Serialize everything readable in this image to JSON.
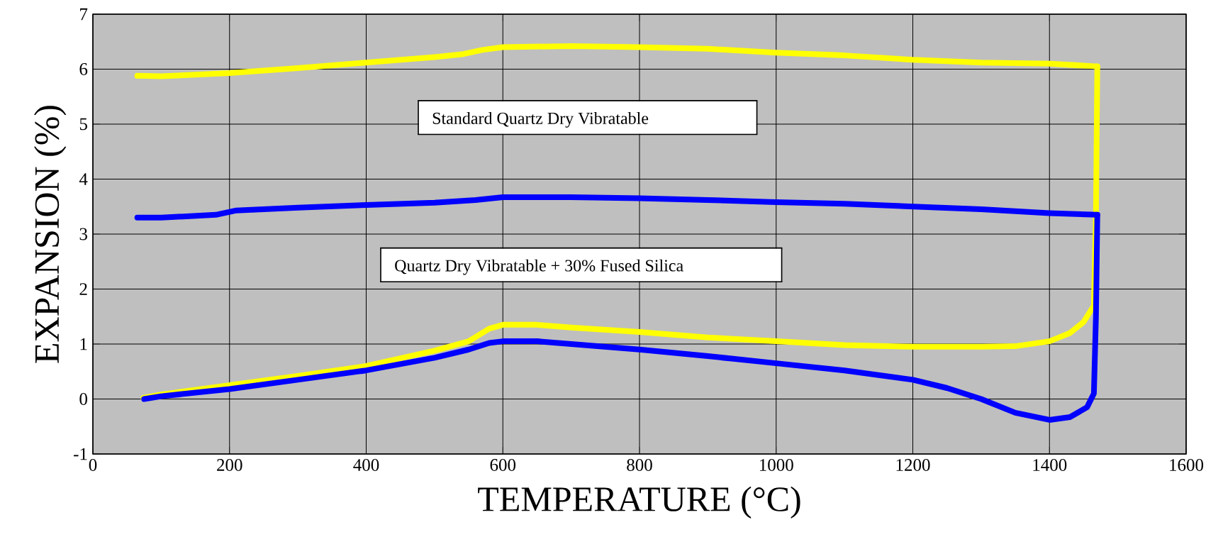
{
  "chart_data": {
    "type": "line",
    "xlabel": "TEMPERATURE (°C)",
    "ylabel": "EXPANSION (%)",
    "xlim": [
      0,
      1600
    ],
    "ylim": [
      -1,
      7
    ],
    "xticks": [
      0,
      200,
      400,
      600,
      800,
      1000,
      1200,
      1400,
      1600
    ],
    "yticks": [
      -1,
      0,
      1,
      2,
      3,
      4,
      5,
      6,
      7
    ],
    "grid": true,
    "marker": "none",
    "line_style": "solid",
    "annotations": [
      "Standard Quartz Dry Vibratable",
      "Quartz Dry Vibratable + 30% Fused Silica"
    ],
    "series": [
      {
        "color": "#ffff00",
        "x": [
          74,
          100,
          200,
          300,
          400,
          500,
          550,
          580,
          600,
          650,
          700,
          800,
          900,
          1000,
          1100,
          1200,
          1300,
          1350,
          1400,
          1430,
          1450,
          1465,
          1468,
          1470
        ],
        "values": [
          0.02,
          0.08,
          0.25,
          0.42,
          0.6,
          0.88,
          1.05,
          1.28,
          1.35,
          1.35,
          1.3,
          1.22,
          1.12,
          1.05,
          0.98,
          0.95,
          0.95,
          0.96,
          1.05,
          1.2,
          1.4,
          1.7,
          3.3,
          6.05
        ]
      },
      {
        "color": "#ffff00",
        "x": [
          1470,
          1400,
          1300,
          1200,
          1100,
          1000,
          900,
          800,
          700,
          600,
          570,
          540,
          500,
          400,
          300,
          200,
          150,
          100,
          65
        ],
        "values": [
          6.05,
          6.1,
          6.12,
          6.17,
          6.25,
          6.3,
          6.37,
          6.4,
          6.42,
          6.4,
          6.35,
          6.27,
          6.22,
          6.12,
          6.02,
          5.93,
          5.9,
          5.87,
          5.88
        ]
      },
      {
        "color": "#0000ff",
        "x": [
          75,
          100,
          200,
          300,
          400,
          500,
          550,
          580,
          600,
          650,
          700,
          800,
          900,
          1000,
          1100,
          1200,
          1250,
          1300,
          1350,
          1400,
          1430,
          1455,
          1465,
          1468,
          1470
        ],
        "values": [
          0.0,
          0.05,
          0.18,
          0.35,
          0.52,
          0.75,
          0.9,
          1.02,
          1.05,
          1.05,
          1.0,
          0.9,
          0.78,
          0.65,
          0.52,
          0.35,
          0.2,
          0.0,
          -0.25,
          -0.38,
          -0.33,
          -0.15,
          0.1,
          1.5,
          3.35
        ]
      },
      {
        "color": "#0000ff",
        "x": [
          1470,
          1400,
          1300,
          1200,
          1100,
          1000,
          900,
          800,
          700,
          600,
          560,
          500,
          400,
          300,
          210,
          180,
          100,
          65
        ],
        "values": [
          3.35,
          3.38,
          3.45,
          3.5,
          3.55,
          3.58,
          3.62,
          3.65,
          3.67,
          3.67,
          3.62,
          3.57,
          3.53,
          3.48,
          3.43,
          3.35,
          3.3,
          3.3
        ]
      }
    ]
  }
}
